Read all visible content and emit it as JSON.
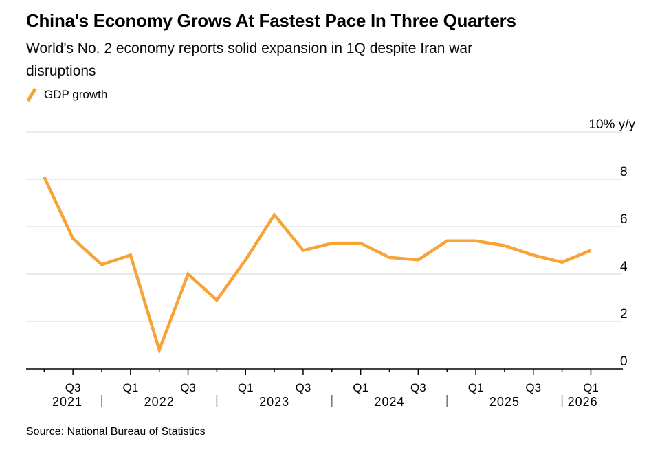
{
  "chart_data": {
    "type": "line",
    "title": "China's Economy Grows At Fastest Pace In Three Quarters",
    "subtitle": "World's No. 2 economy reports solid expansion in 1Q despite Iran war disruptions",
    "source": "Source: National Bureau of Statistics",
    "legend_position": "top-left",
    "grid": true,
    "x": [
      "Q2 2021",
      "Q3 2021",
      "Q4 2021",
      "Q1 2022",
      "Q2 2022",
      "Q3 2022",
      "Q4 2022",
      "Q1 2023",
      "Q2 2023",
      "Q3 2023",
      "Q4 2023",
      "Q1 2024",
      "Q2 2024",
      "Q3 2024",
      "Q4 2024",
      "Q1 2025",
      "Q2 2025",
      "Q3 2025",
      "Q4 2025",
      "Q1 2026"
    ],
    "series": [
      {
        "name": "GDP growth",
        "color": "#F7A338",
        "values": [
          8.1,
          5.5,
          4.4,
          4.8,
          0.8,
          4.0,
          2.9,
          4.6,
          6.5,
          5.0,
          5.3,
          5.3,
          4.7,
          4.6,
          5.4,
          5.4,
          5.2,
          4.8,
          4.5,
          5.0
        ]
      }
    ],
    "y_axis": {
      "unit_label": "10% y/y",
      "ticks": [
        0,
        2,
        4,
        6,
        8,
        10
      ],
      "range": [
        0,
        10
      ],
      "position": "right"
    },
    "x_axis": {
      "labeled_quarters": [
        "Q1",
        "Q3"
      ],
      "years": [
        "2021",
        "2022",
        "2023",
        "2024",
        "2025",
        "2026"
      ]
    },
    "colors": {
      "line": "#F7A338",
      "gridline": "#D7D7D7",
      "axis": "#000000",
      "year_text": "#757575"
    }
  }
}
